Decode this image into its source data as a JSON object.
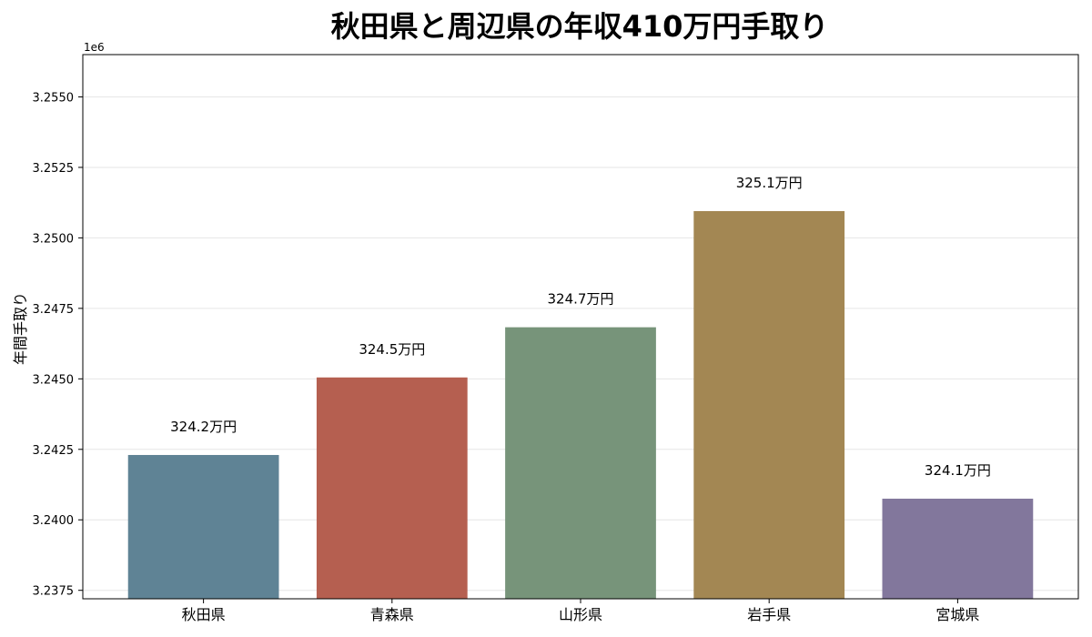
{
  "chart_data": {
    "type": "bar",
    "title": "秋田県と周辺県の年収410万円手取り",
    "xlabel": "",
    "ylabel": "年間手取り",
    "y_offset_label": "1e6",
    "categories": [
      "秋田県",
      "青森県",
      "山形県",
      "岩手県",
      "宮城県"
    ],
    "values": [
      3242300,
      3245050,
      3246830,
      3250950,
      3240750
    ],
    "data_labels": [
      "324.2万円",
      "324.5万円",
      "324.7万円",
      "325.1万円",
      "324.1万円"
    ],
    "colors": [
      "#5f8395",
      "#b55f50",
      "#77947a",
      "#a38753",
      "#82779c"
    ],
    "ylim": [
      3237200,
      3256500
    ],
    "yticks": [
      3237500,
      3240000,
      3242500,
      3245000,
      3247500,
      3250000,
      3252500,
      3255000
    ],
    "ytick_labels": [
      "3.2375",
      "3.2400",
      "3.2425",
      "3.2450",
      "3.2475",
      "3.2500",
      "3.2525",
      "3.2550"
    ],
    "grid": true,
    "legend": false
  }
}
